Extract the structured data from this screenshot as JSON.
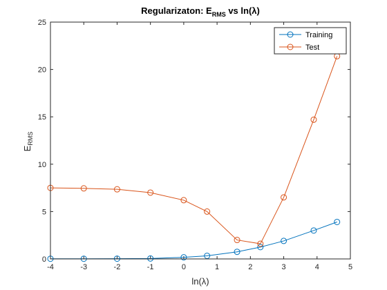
{
  "chart_data": {
    "type": "line",
    "title": "Regularizaton: E",
    "title_sub": "RMS",
    "title_tail": " vs ln(λ)",
    "xlabel": "ln(λ)",
    "ylabel": "E",
    "ylabel_sub": "RMS",
    "xlim": [
      -4,
      5
    ],
    "ylim": [
      0,
      25
    ],
    "xticks": [
      -4,
      -3,
      -2,
      -1,
      0,
      1,
      2,
      3,
      4,
      5
    ],
    "yticks": [
      0,
      5,
      10,
      15,
      20,
      25
    ],
    "legend_position": "top-right",
    "series": [
      {
        "name": "Training",
        "color": "#0072bd",
        "x": [
          -4,
          -3,
          -2,
          -1,
          0,
          0.7,
          1.6,
          2.3,
          3,
          3.9,
          4.6
        ],
        "y": [
          0.02,
          0.02,
          0.03,
          0.05,
          0.17,
          0.33,
          0.75,
          1.25,
          1.9,
          3.0,
          3.9
        ]
      },
      {
        "name": "Test",
        "color": "#d95319",
        "x": [
          -4,
          -3,
          -2,
          -1,
          0,
          0.7,
          1.6,
          2.3,
          3,
          3.9,
          4.6
        ],
        "y": [
          7.5,
          7.45,
          7.35,
          7.0,
          6.2,
          5.0,
          2.0,
          1.6,
          6.5,
          14.7,
          21.4
        ]
      }
    ]
  }
}
